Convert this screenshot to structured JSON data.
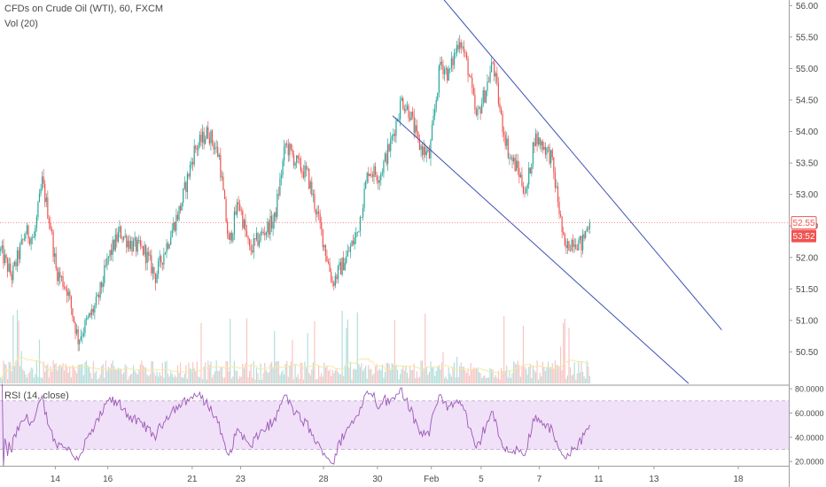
{
  "chart": {
    "symbol_title": "CFDs on Crude Oil (WTI), 60, FXCM",
    "volume_label": "Vol (20)",
    "rsi_label": "RSI (14, close)"
  },
  "colors": {
    "up": "#26a69a",
    "down": "#ef5350",
    "volume_up": "#b2dfdb",
    "volume_down": "#f7c6c4",
    "volume_ma": "#f6e9a6",
    "channel": "#3f51b5",
    "rsi_line": "#9c59b6",
    "rsi_band": "#f0e0f8",
    "price_badge_red": "#ef5350",
    "axis_text": "#4a4a4a"
  },
  "price_badges": [
    {
      "label": "52.55",
      "style": "outline"
    },
    {
      "label": "53:52",
      "style": "filled"
    }
  ],
  "chart_data": [
    {
      "type": "candlestick",
      "title": "CFDs on Crude Oil (WTI), 60, FXCM",
      "y_ticks": [
        "56.00",
        "55.50",
        "55.00",
        "54.50",
        "54.00",
        "53.50",
        "53.00",
        "52.50",
        "52.00",
        "51.50",
        "51.00",
        "50.50"
      ],
      "ylim": [
        50.0,
        56.06
      ],
      "x_ticks": [
        "14",
        "16",
        "21",
        "23",
        "28",
        "30",
        "Feb",
        "5",
        "7",
        "11",
        "13",
        "18"
      ],
      "last_price": 52.55,
      "countdown": "53:52",
      "path": [
        {
          "i": 0,
          "p": 52.1
        },
        {
          "i": 8,
          "p": 51.7
        },
        {
          "i": 18,
          "p": 52.4
        },
        {
          "i": 24,
          "p": 52.3
        },
        {
          "i": 30,
          "p": 53.2
        },
        {
          "i": 36,
          "p": 52.5
        },
        {
          "i": 40,
          "p": 51.8
        },
        {
          "i": 48,
          "p": 51.5
        },
        {
          "i": 56,
          "p": 50.7
        },
        {
          "i": 63,
          "p": 51.0
        },
        {
          "i": 70,
          "p": 51.3
        },
        {
          "i": 78,
          "p": 52.0
        },
        {
          "i": 86,
          "p": 52.4
        },
        {
          "i": 95,
          "p": 52.2
        },
        {
          "i": 104,
          "p": 52.1
        },
        {
          "i": 112,
          "p": 51.7
        },
        {
          "i": 120,
          "p": 52.2
        },
        {
          "i": 130,
          "p": 52.8
        },
        {
          "i": 140,
          "p": 53.7
        },
        {
          "i": 150,
          "p": 54.0
        },
        {
          "i": 158,
          "p": 53.6
        },
        {
          "i": 165,
          "p": 52.2
        },
        {
          "i": 172,
          "p": 52.9
        },
        {
          "i": 180,
          "p": 52.1
        },
        {
          "i": 190,
          "p": 52.4
        },
        {
          "i": 198,
          "p": 52.6
        },
        {
          "i": 206,
          "p": 53.8
        },
        {
          "i": 214,
          "p": 53.5
        },
        {
          "i": 222,
          "p": 53.3
        },
        {
          "i": 232,
          "p": 52.4
        },
        {
          "i": 240,
          "p": 51.6
        },
        {
          "i": 250,
          "p": 52.0
        },
        {
          "i": 258,
          "p": 52.4
        },
        {
          "i": 266,
          "p": 53.4
        },
        {
          "i": 274,
          "p": 53.3
        },
        {
          "i": 282,
          "p": 53.8
        },
        {
          "i": 290,
          "p": 54.5
        },
        {
          "i": 296,
          "p": 54.3
        },
        {
          "i": 302,
          "p": 53.8
        },
        {
          "i": 310,
          "p": 53.6
        },
        {
          "i": 318,
          "p": 55.1
        },
        {
          "i": 324,
          "p": 54.9
        },
        {
          "i": 332,
          "p": 55.5
        },
        {
          "i": 338,
          "p": 55.0
        },
        {
          "i": 344,
          "p": 54.2
        },
        {
          "i": 350,
          "p": 54.6
        },
        {
          "i": 356,
          "p": 55.1
        },
        {
          "i": 362,
          "p": 54.2
        },
        {
          "i": 368,
          "p": 53.6
        },
        {
          "i": 374,
          "p": 53.4
        },
        {
          "i": 380,
          "p": 53.0
        },
        {
          "i": 386,
          "p": 53.9
        },
        {
          "i": 392,
          "p": 53.8
        },
        {
          "i": 398,
          "p": 53.6
        },
        {
          "i": 403,
          "p": 52.9
        },
        {
          "i": 408,
          "p": 52.1
        },
        {
          "i": 414,
          "p": 52.3
        },
        {
          "i": 420,
          "p": 52.2
        },
        {
          "i": 426,
          "p": 52.6
        }
      ]
    },
    {
      "type": "bar",
      "title": "Vol (20)"
    },
    {
      "type": "line",
      "title": "RSI (14, close)",
      "y_ticks": [
        "80.0000",
        "60.0000",
        "40.0000",
        "20.0000"
      ],
      "ylim": [
        16.5,
        81.5
      ],
      "band": [
        30,
        70
      ]
    }
  ],
  "channel_lines": [
    {
      "from": {
        "i": 320,
        "p": 56.12
      },
      "to": {
        "i": 522,
        "p": 50.85
      }
    },
    {
      "from": {
        "i": 284,
        "p": 54.25
      },
      "to": {
        "i": 498,
        "p": 50.0
      }
    }
  ]
}
